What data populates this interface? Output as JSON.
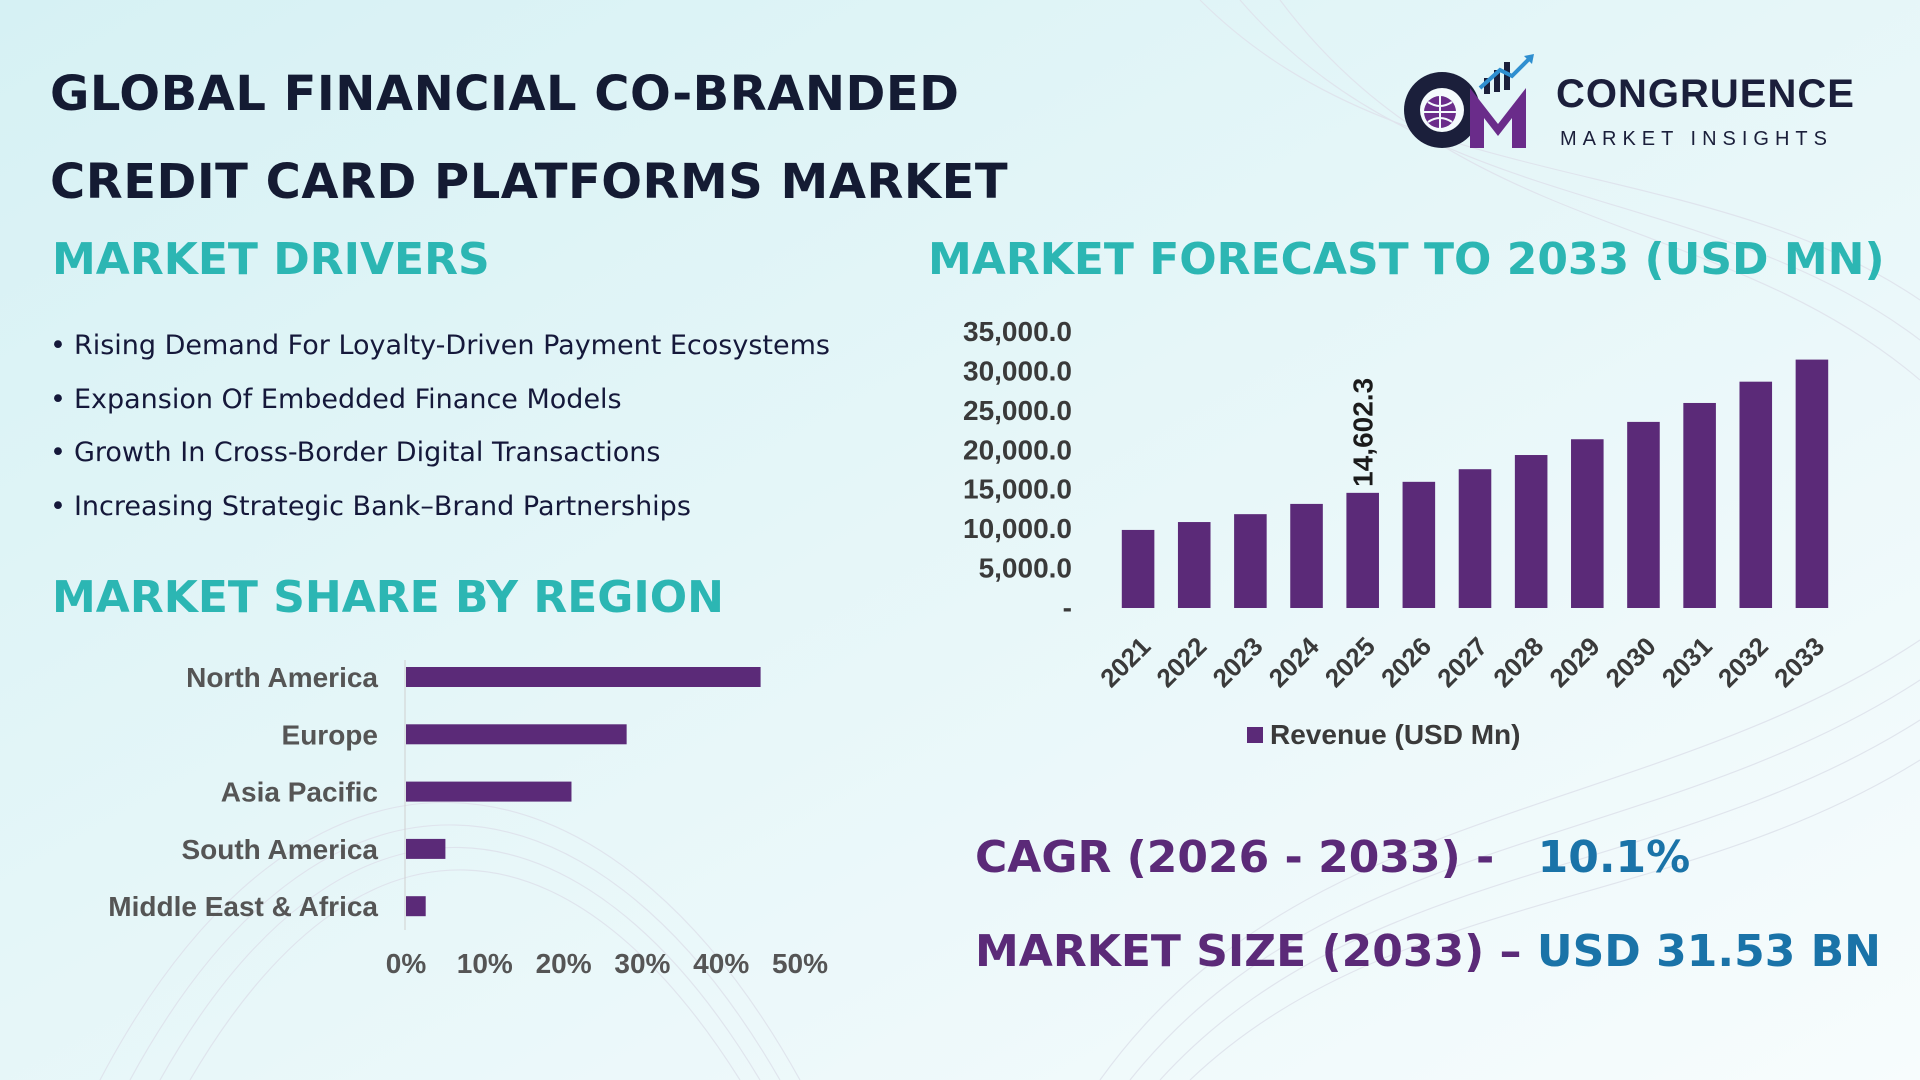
{
  "title_lines": [
    "GLOBAL FINANCIAL CO-BRANDED",
    "CREDIT CARD PLATFORMS MARKET"
  ],
  "logo": {
    "word": "CONGRUENCE",
    "sub": "MARKET INSIGHTS",
    "mark": "CM"
  },
  "sections": {
    "drivers": "MARKET DRIVERS",
    "region": "MARKET SHARE BY REGION",
    "forecast": "MARKET FORECAST TO 2033 (USD MN)"
  },
  "drivers": [
    "Rising Demand For Loyalty-Driven Payment Ecosystems",
    "Expansion Of Embedded Finance Models",
    "Growth In Cross-Border Digital Transactions",
    "Increasing Strategic Bank–Brand Partnerships"
  ],
  "stats": {
    "cagr_label": "CAGR (2026 - 2033) -",
    "cagr_value": "10.1%",
    "size_label": "MARKET SIZE (2033) –",
    "size_value": "USD 31.53 BN"
  },
  "colors": {
    "bar": "#5b2a78",
    "heading": "#2cb6b3",
    "accent": "#1a73a8"
  },
  "chart_data": [
    {
      "type": "bar",
      "title": "MARKET FORECAST TO 2033 (USD MN)",
      "categories": [
        "2021",
        "2022",
        "2023",
        "2024",
        "2025",
        "2026",
        "2027",
        "2028",
        "2029",
        "2030",
        "2031",
        "2032",
        "2033"
      ],
      "series": [
        {
          "name": "Revenue (USD Mn)",
          "values": [
            9900,
            10900,
            11900,
            13200,
            14602.3,
            16000,
            17600,
            19400,
            21400,
            23600,
            26000,
            28700,
            31500
          ]
        }
      ],
      "data_labels": [
        {
          "category": "2025",
          "text": "14,602.3"
        }
      ],
      "ylim": [
        0,
        35000
      ],
      "y_ticks": [
        "-",
        "5,000.0",
        "10,000.0",
        "15,000.0",
        "20,000.0",
        "25,000.0",
        "30,000.0",
        "35,000.0"
      ],
      "legend": "bottom",
      "grid": false
    },
    {
      "type": "bar",
      "orientation": "horizontal",
      "title": "MARKET SHARE BY REGION",
      "categories": [
        "North America",
        "Europe",
        "Asia Pacific",
        "South America",
        "Middle East & Africa"
      ],
      "values": [
        45,
        28,
        21,
        5,
        2.5
      ],
      "x_ticks": [
        "0%",
        "10%",
        "20%",
        "30%",
        "40%",
        "50%"
      ],
      "xlim": [
        0,
        50
      ],
      "grid": false
    }
  ]
}
